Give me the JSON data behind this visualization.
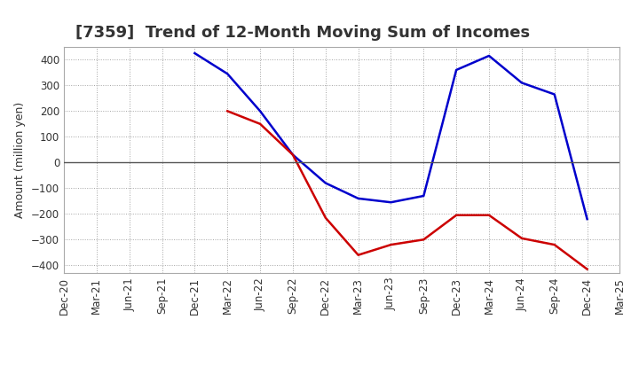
{
  "title": "[7359]  Trend of 12-Month Moving Sum of Incomes",
  "ylabel": "Amount (million yen)",
  "x_labels": [
    "Dec-20",
    "Mar-21",
    "Jun-21",
    "Sep-21",
    "Dec-21",
    "Mar-22",
    "Jun-22",
    "Sep-22",
    "Dec-22",
    "Mar-23",
    "Jun-23",
    "Sep-23",
    "Dec-23",
    "Mar-24",
    "Jun-24",
    "Sep-24",
    "Dec-24",
    "Mar-25"
  ],
  "ordinary_income": [
    null,
    null,
    null,
    null,
    425,
    345,
    200,
    30,
    -80,
    -140,
    -155,
    -130,
    360,
    415,
    310,
    265,
    -220,
    null
  ],
  "net_income": [
    null,
    null,
    null,
    null,
    null,
    200,
    150,
    30,
    -215,
    -360,
    -320,
    -300,
    -205,
    -205,
    -295,
    -320,
    -415,
    null
  ],
  "ordinary_color": "#0000cc",
  "net_color": "#cc0000",
  "ylim": [
    -430,
    450
  ],
  "yticks": [
    -400,
    -300,
    -200,
    -100,
    0,
    100,
    200,
    300,
    400
  ],
  "background_color": "#ffffff",
  "grid_color": "#999999",
  "title_color": "#333333",
  "title_fontsize": 13,
  "label_fontsize": 9,
  "tick_fontsize": 8.5
}
